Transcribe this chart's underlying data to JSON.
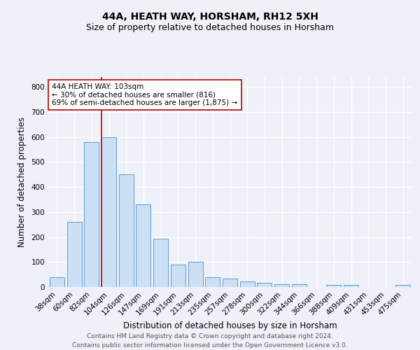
{
  "title": "44A, HEATH WAY, HORSHAM, RH12 5XH",
  "subtitle": "Size of property relative to detached houses in Horsham",
  "xlabel": "Distribution of detached houses by size in Horsham",
  "ylabel": "Number of detached properties",
  "footer_line1": "Contains HM Land Registry data © Crown copyright and database right 2024.",
  "footer_line2": "Contains public sector information licensed under the Open Government Licence v3.0.",
  "categories": [
    "38sqm",
    "60sqm",
    "82sqm",
    "104sqm",
    "126sqm",
    "147sqm",
    "169sqm",
    "191sqm",
    "213sqm",
    "235sqm",
    "257sqm",
    "278sqm",
    "300sqm",
    "322sqm",
    "344sqm",
    "366sqm",
    "388sqm",
    "409sqm",
    "431sqm",
    "453sqm",
    "475sqm"
  ],
  "values": [
    40,
    260,
    580,
    600,
    450,
    330,
    192,
    90,
    100,
    38,
    33,
    22,
    16,
    12,
    10,
    0,
    8,
    8,
    0,
    0,
    8
  ],
  "bar_color_fill": "#cce0f5",
  "bar_color_edge": "#5b9bd5",
  "vline_x_index": 3,
  "vline_color": "#c00000",
  "annotation_text_line1": "44A HEATH WAY: 103sqm",
  "annotation_text_line2": "← 30% of detached houses are smaller (816)",
  "annotation_text_line3": "69% of semi-detached houses are larger (1,875) →",
  "annotation_box_color": "#ffffff",
  "annotation_box_edge": "#c00000",
  "ylim": [
    0,
    840
  ],
  "yticks": [
    0,
    100,
    200,
    300,
    400,
    500,
    600,
    700,
    800
  ],
  "background_color": "#eef2f8",
  "grid_color": "#ffffff",
  "title_fontsize": 10,
  "subtitle_fontsize": 9,
  "axis_label_fontsize": 8.5,
  "tick_fontsize": 7.5,
  "annotation_fontsize": 7.5,
  "footer_fontsize": 6.5
}
